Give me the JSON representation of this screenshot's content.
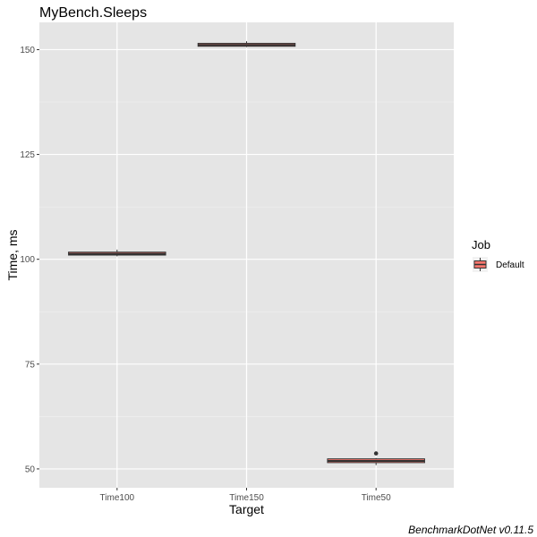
{
  "chart_data": {
    "type": "box",
    "title": "MyBench.Sleeps",
    "xlabel": "Target",
    "ylabel": "Time, ms",
    "categories": [
      "Time100",
      "Time150",
      "Time50"
    ],
    "ylim": [
      45.5,
      156.5
    ],
    "yticks": [
      50,
      75,
      100,
      125,
      150
    ],
    "grid": true,
    "legend": {
      "title": "Job",
      "position": "right",
      "entries": [
        {
          "label": "Default",
          "color": "#f8766d"
        }
      ]
    },
    "series": [
      {
        "name": "Default",
        "color": "#f8766d",
        "boxes": [
          {
            "category": "Time100",
            "min": 100.7,
            "q1": 101.0,
            "median": 101.3,
            "q3": 101.7,
            "max": 102.3,
            "outliers": []
          },
          {
            "category": "Time150",
            "min": 150.6,
            "q1": 150.8,
            "median": 151.1,
            "q3": 151.5,
            "max": 152.0,
            "outliers": []
          },
          {
            "category": "Time50",
            "min": 50.9,
            "q1": 51.5,
            "median": 51.9,
            "q3": 52.4,
            "max": 52.6,
            "outliers": [
              53.7
            ]
          }
        ]
      }
    ]
  },
  "caption": "BenchmarkDotNet v0.11.5"
}
